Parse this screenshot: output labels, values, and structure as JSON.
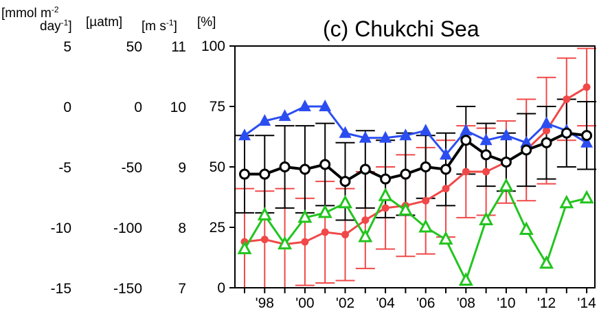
{
  "title": "(c) Chukchi Sea",
  "units": {
    "flux_line1": "[mmol m",
    "flux_sup1": "-2",
    "flux_line2": "day",
    "flux_sup2": "-1",
    "flux_close": "]",
    "pco2": "[µatm]",
    "wind": "[m s",
    "wind_sup": "-1",
    "wind_close": "]",
    "percent": "[%]"
  },
  "axes": {
    "flux_ticks": [
      "5",
      "0",
      "-5",
      "-10",
      "-15"
    ],
    "pco2_ticks": [
      "50",
      "0",
      "-50",
      "-100",
      "-150"
    ],
    "wind_ticks": [
      "11",
      "10",
      "9",
      "8",
      "7"
    ],
    "percent_ticks": [
      "100",
      "75",
      "50",
      "25",
      "0"
    ],
    "x_tick_labels": [
      "'98",
      "'00",
      "'02",
      "'04",
      "'06",
      "'08",
      "'10",
      "'12",
      "'14"
    ]
  },
  "chart_data": {
    "type": "line",
    "title": "(c) Chukchi Sea",
    "x": [
      1997,
      1998,
      1999,
      2000,
      2001,
      2002,
      2003,
      2004,
      2005,
      2006,
      2007,
      2008,
      2009,
      2010,
      2011,
      2012,
      2013,
      2014
    ],
    "x_tick_labels": [
      "'98",
      "'00",
      "'02",
      "'04",
      "'06",
      "'08",
      "'10",
      "'12",
      "'14"
    ],
    "ylim_percent": [
      0,
      100
    ],
    "ylim_flux": [
      -15,
      5
    ],
    "ylim_pco2": [
      -150,
      50
    ],
    "ylim_wind": [
      7,
      11
    ],
    "series": [
      {
        "color": "#2b4df0",
        "marker": "triangle-filled",
        "values": [
          63,
          69,
          71,
          75,
          75,
          64,
          62,
          62,
          63,
          65,
          55,
          65,
          61,
          63,
          60,
          68,
          65,
          60
        ]
      },
      {
        "color": "#000000",
        "marker": "circle-open",
        "values": [
          47,
          47,
          50,
          49,
          51,
          44,
          49,
          45,
          47,
          50,
          49,
          61,
          55,
          52,
          57,
          60,
          64,
          63
        ],
        "error": [
          16,
          16,
          17,
          18,
          17,
          16,
          16,
          16,
          17,
          13,
          15,
          14,
          13,
          12,
          15,
          15,
          14,
          14
        ]
      },
      {
        "color": "#f04848",
        "marker": "circle-filled",
        "values": [
          19,
          20,
          18,
          19,
          23,
          22,
          28,
          33,
          34,
          36,
          41,
          48,
          48,
          52,
          57,
          65,
          78,
          83
        ],
        "error": [
          22,
          20,
          23,
          18,
          21,
          19,
          20,
          17,
          21,
          22,
          20,
          19,
          18,
          17,
          21,
          22,
          17,
          16
        ]
      },
      {
        "color": "#22c41e",
        "marker": "triangle-open",
        "values": [
          16,
          30,
          18,
          29,
          31,
          35,
          21,
          38,
          32,
          25,
          20,
          3,
          28,
          42,
          24,
          10,
          35,
          37
        ]
      }
    ]
  }
}
